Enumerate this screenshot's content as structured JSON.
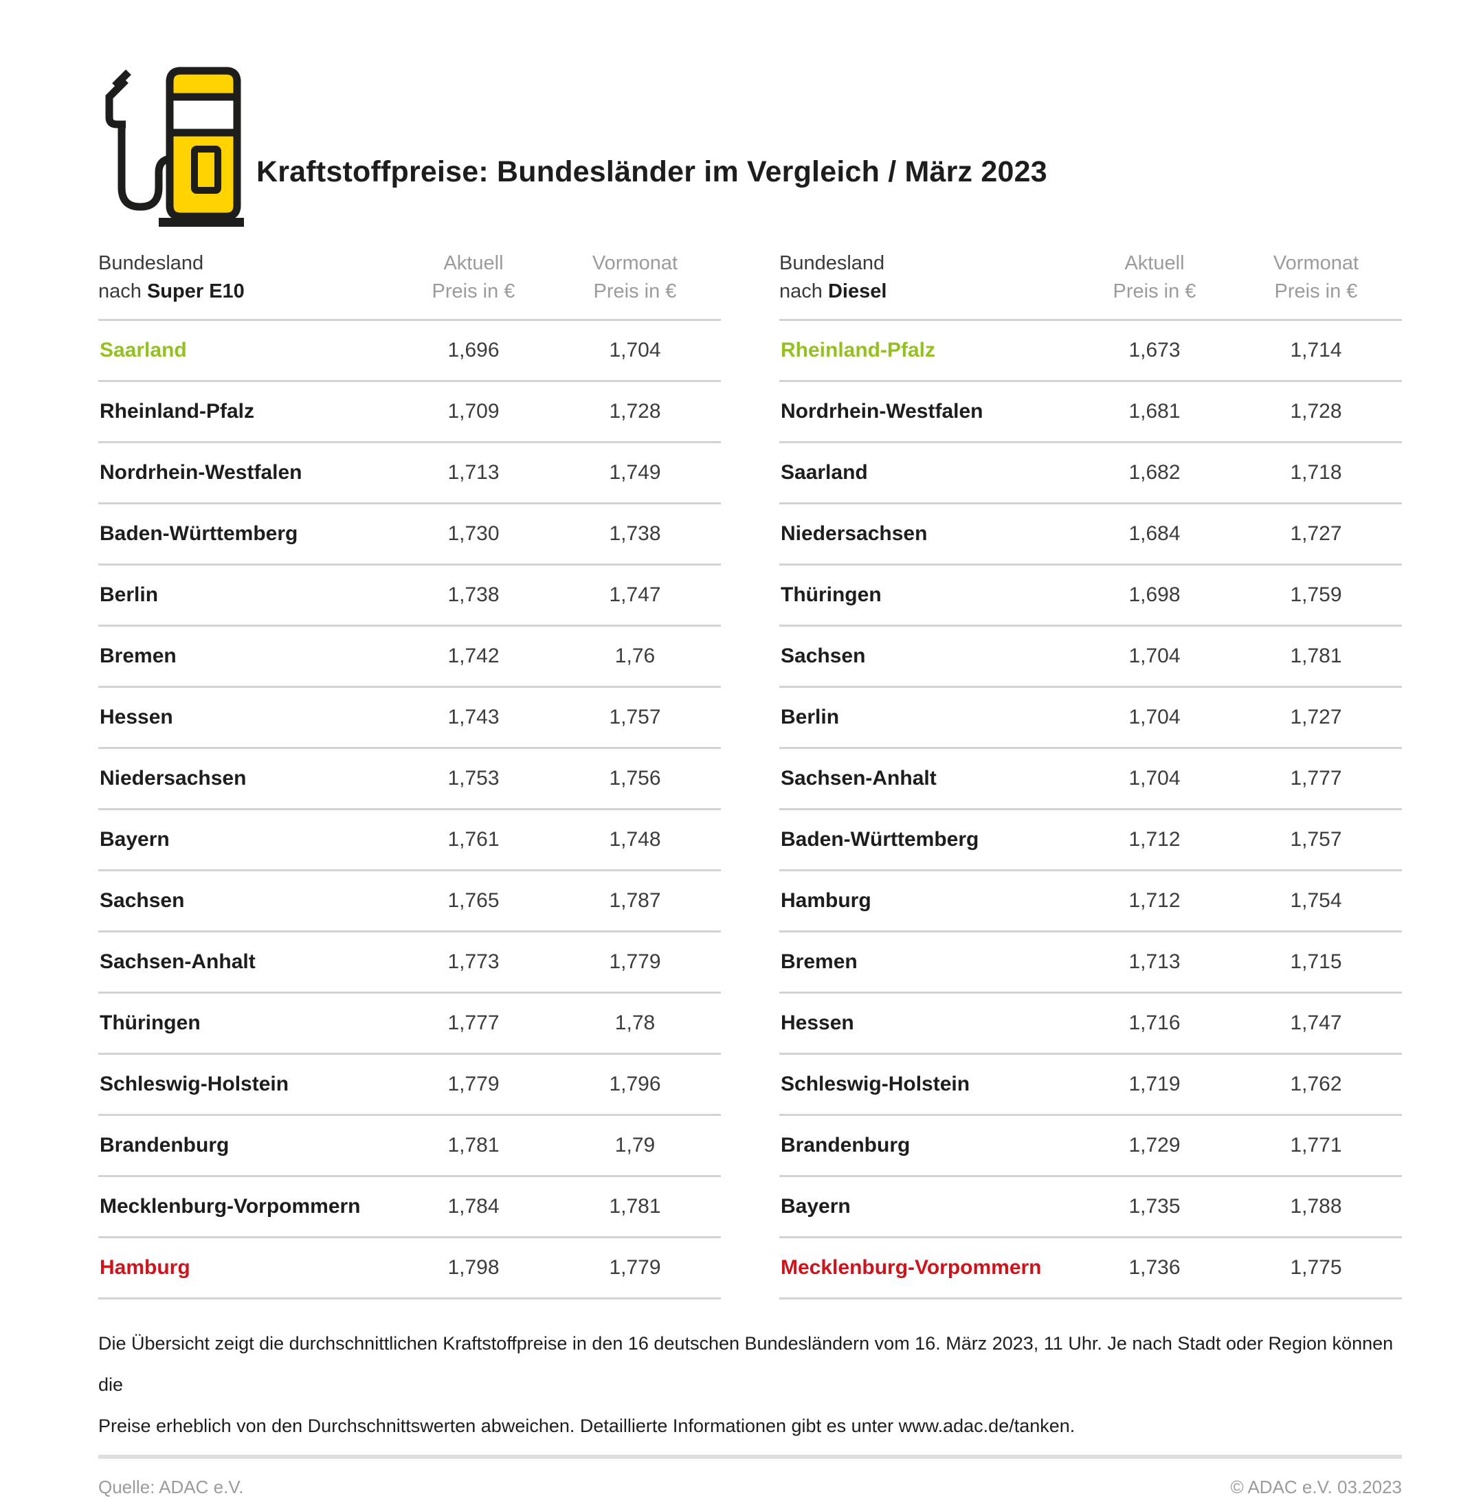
{
  "header": {
    "title": "Kraftstoffpreise: Bundesländer im Vergleich / März 2023",
    "logo": "fuel-pump-icon"
  },
  "colors": {
    "brand_yellow": "#ffd200",
    "highlight_green": "#94c11f",
    "highlight_red": "#d0121b",
    "muted_gray": "#9b9b99",
    "divider_gray": "#d3d3d3"
  },
  "chart_data": [
    {
      "type": "table",
      "fuel": "Super E10",
      "header": {
        "col1_line1": "Bundesland",
        "col1_nach": "nach ",
        "col1_fuel": "Super E10",
        "col2_line1": "Aktuell",
        "col2_line2": "Preis in €",
        "col3_line1": "Vormonat",
        "col3_line2": "Preis in €"
      },
      "rows": [
        {
          "state": "Saarland",
          "aktuell": "1,696",
          "vormonat": "1,704",
          "highlight": "green"
        },
        {
          "state": "Rheinland-Pfalz",
          "aktuell": "1,709",
          "vormonat": "1,728",
          "highlight": ""
        },
        {
          "state": "Nordrhein-Westfalen",
          "aktuell": "1,713",
          "vormonat": "1,749",
          "highlight": ""
        },
        {
          "state": "Baden-Württemberg",
          "aktuell": "1,730",
          "vormonat": "1,738",
          "highlight": ""
        },
        {
          "state": "Berlin",
          "aktuell": "1,738",
          "vormonat": "1,747",
          "highlight": ""
        },
        {
          "state": "Bremen",
          "aktuell": "1,742",
          "vormonat": "1,76",
          "highlight": ""
        },
        {
          "state": "Hessen",
          "aktuell": "1,743",
          "vormonat": "1,757",
          "highlight": ""
        },
        {
          "state": "Niedersachsen",
          "aktuell": "1,753",
          "vormonat": "1,756",
          "highlight": ""
        },
        {
          "state": "Bayern",
          "aktuell": "1,761",
          "vormonat": "1,748",
          "highlight": ""
        },
        {
          "state": "Sachsen",
          "aktuell": "1,765",
          "vormonat": "1,787",
          "highlight": ""
        },
        {
          "state": "Sachsen-Anhalt",
          "aktuell": "1,773",
          "vormonat": "1,779",
          "highlight": ""
        },
        {
          "state": "Thüringen",
          "aktuell": "1,777",
          "vormonat": "1,78",
          "highlight": ""
        },
        {
          "state": "Schleswig-Holstein",
          "aktuell": "1,779",
          "vormonat": "1,796",
          "highlight": ""
        },
        {
          "state": "Brandenburg",
          "aktuell": "1,781",
          "vormonat": "1,79",
          "highlight": ""
        },
        {
          "state": "Mecklenburg-Vorpommern",
          "aktuell": "1,784",
          "vormonat": "1,781",
          "highlight": ""
        },
        {
          "state": "Hamburg",
          "aktuell": "1,798",
          "vormonat": "1,779",
          "highlight": "red"
        }
      ]
    },
    {
      "type": "table",
      "fuel": "Diesel",
      "header": {
        "col1_line1": "Bundesland",
        "col1_nach": "nach ",
        "col1_fuel": "Diesel",
        "col2_line1": "Aktuell",
        "col2_line2": "Preis in €",
        "col3_line1": "Vormonat",
        "col3_line2": "Preis in €"
      },
      "rows": [
        {
          "state": "Rheinland-Pfalz",
          "aktuell": "1,673",
          "vormonat": "1,714",
          "highlight": "green"
        },
        {
          "state": "Nordrhein-Westfalen",
          "aktuell": "1,681",
          "vormonat": "1,728",
          "highlight": ""
        },
        {
          "state": "Saarland",
          "aktuell": "1,682",
          "vormonat": "1,718",
          "highlight": ""
        },
        {
          "state": "Niedersachsen",
          "aktuell": "1,684",
          "vormonat": "1,727",
          "highlight": ""
        },
        {
          "state": "Thüringen",
          "aktuell": "1,698",
          "vormonat": "1,759",
          "highlight": ""
        },
        {
          "state": "Sachsen",
          "aktuell": "1,704",
          "vormonat": "1,781",
          "highlight": ""
        },
        {
          "state": "Berlin",
          "aktuell": "1,704",
          "vormonat": "1,727",
          "highlight": ""
        },
        {
          "state": "Sachsen-Anhalt",
          "aktuell": "1,704",
          "vormonat": "1,777",
          "highlight": ""
        },
        {
          "state": "Baden-Württemberg",
          "aktuell": "1,712",
          "vormonat": "1,757",
          "highlight": ""
        },
        {
          "state": "Hamburg",
          "aktuell": "1,712",
          "vormonat": "1,754",
          "highlight": ""
        },
        {
          "state": "Bremen",
          "aktuell": "1,713",
          "vormonat": "1,715",
          "highlight": ""
        },
        {
          "state": "Hessen",
          "aktuell": "1,716",
          "vormonat": "1,747",
          "highlight": ""
        },
        {
          "state": "Schleswig-Holstein",
          "aktuell": "1,719",
          "vormonat": "1,762",
          "highlight": ""
        },
        {
          "state": "Brandenburg",
          "aktuell": "1,729",
          "vormonat": "1,771",
          "highlight": ""
        },
        {
          "state": "Bayern",
          "aktuell": "1,735",
          "vormonat": "1,788",
          "highlight": ""
        },
        {
          "state": "Mecklenburg-Vorpommern",
          "aktuell": "1,736",
          "vormonat": "1,775",
          "highlight": "red"
        }
      ]
    }
  ],
  "footnote": {
    "line1": "Die Übersicht zeigt die durchschnittlichen Kraftstoffpreise in den 16 deutschen Bundesländern vom 16. März 2023, 11 Uhr. Je nach Stadt oder Region können die",
    "line2": "Preise erheblich von den Durchschnittswerten abweichen. Detaillierte Informationen gibt es unter www.adac.de/tanken."
  },
  "footer": {
    "source": "Quelle: ADAC e.V.",
    "copyright": "© ADAC e.V. 03.2023"
  }
}
